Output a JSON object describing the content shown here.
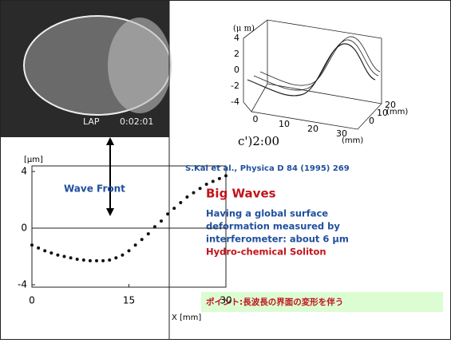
{
  "photo": {
    "label": "LAP",
    "time": "0:02:01"
  },
  "surface_plot": {
    "z_unit": "(μ m)",
    "zticks": [
      4,
      2,
      0,
      -2,
      -4
    ],
    "xticks": [
      0,
      10,
      20,
      30
    ],
    "x_unit": "(mm)",
    "yticks": [
      0,
      10,
      20
    ],
    "y_unit": "(mm)",
    "caption": "c')2:00"
  },
  "profile_chart": {
    "type": "line",
    "y_label": "[μm]",
    "x_label": "X [mm]",
    "annotation": "Wave Front",
    "x": [
      0,
      1,
      2,
      3,
      4,
      5,
      6,
      7,
      8,
      9,
      10,
      11,
      12,
      13,
      14,
      15,
      16,
      17,
      18,
      19,
      20,
      21,
      22,
      23,
      24,
      25,
      26,
      27,
      28,
      29,
      30
    ],
    "values": [
      -1.2,
      -1.4,
      -1.6,
      -1.75,
      -1.9,
      -2.0,
      -2.1,
      -2.2,
      -2.25,
      -2.3,
      -2.3,
      -2.3,
      -2.25,
      -2.1,
      -1.9,
      -1.6,
      -1.2,
      -0.8,
      -0.4,
      0.1,
      0.5,
      1.0,
      1.4,
      1.8,
      2.2,
      2.5,
      2.8,
      3.1,
      3.3,
      3.5,
      3.7
    ],
    "xlim": [
      0,
      30
    ],
    "xticks": [
      0,
      15,
      30
    ],
    "ylim": [
      -4,
      4
    ],
    "yticks": [
      -4,
      0,
      4
    ]
  },
  "reference": "S.Kai et al., Physica D 84 (1995) 269",
  "heading": "Big Waves",
  "description": [
    "Having a global surface",
    "deformation measured by",
    "interferometer: about 6 μm"
  ],
  "subtitle": "Hydro-chemical Soliton",
  "point": "ポイント:長波長の界面の変形を伴う"
}
